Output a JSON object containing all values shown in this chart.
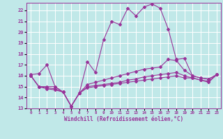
{
  "xlabel": "Windchill (Refroidissement éolien,°C)",
  "bg_color": "#c0e8e8",
  "grid_color": "#ffffff",
  "line_color": "#993399",
  "xlim": [
    -0.5,
    23.5
  ],
  "ylim": [
    13,
    22.7
  ],
  "yticks": [
    13,
    14,
    15,
    16,
    17,
    18,
    19,
    20,
    21,
    22
  ],
  "xticks": [
    0,
    1,
    2,
    3,
    4,
    5,
    6,
    7,
    8,
    9,
    10,
    11,
    12,
    13,
    14,
    15,
    16,
    17,
    18,
    19,
    20,
    21,
    22,
    23
  ],
  "line1_x": [
    0,
    1,
    2,
    3,
    4,
    5,
    6,
    7,
    8,
    9,
    10,
    11,
    12,
    13,
    14,
    15,
    16,
    17,
    18,
    19,
    20,
    21,
    22,
    23
  ],
  "line1_y": [
    16.1,
    16.2,
    17.0,
    15.0,
    14.5,
    13.2,
    14.4,
    17.3,
    16.3,
    19.3,
    21.0,
    20.7,
    22.2,
    21.5,
    22.3,
    22.6,
    22.2,
    20.3,
    17.5,
    17.6,
    16.0,
    15.8,
    15.7,
    16.1
  ],
  "line2_x": [
    0,
    1,
    2,
    3,
    4,
    5,
    6,
    7,
    8,
    9,
    10,
    11,
    12,
    13,
    14,
    15,
    16,
    17,
    18,
    19,
    20,
    21,
    22,
    23
  ],
  "line2_y": [
    16.0,
    15.0,
    15.0,
    15.0,
    14.5,
    13.2,
    14.4,
    15.2,
    15.4,
    15.6,
    15.8,
    16.0,
    16.2,
    16.4,
    16.6,
    16.7,
    16.8,
    17.5,
    17.4,
    16.5,
    16.0,
    15.8,
    15.7,
    16.1
  ],
  "line3_x": [
    0,
    1,
    2,
    3,
    4,
    5,
    6,
    7,
    8,
    9,
    10,
    11,
    12,
    13,
    14,
    15,
    16,
    17,
    18,
    19,
    20,
    21,
    22,
    23
  ],
  "line3_y": [
    16.0,
    15.0,
    14.9,
    14.8,
    14.5,
    13.2,
    14.4,
    15.0,
    15.1,
    15.2,
    15.3,
    15.4,
    15.6,
    15.7,
    15.9,
    16.0,
    16.1,
    16.2,
    16.3,
    16.0,
    15.8,
    15.6,
    15.5,
    16.1
  ],
  "line4_x": [
    0,
    1,
    2,
    3,
    4,
    5,
    6,
    7,
    8,
    9,
    10,
    11,
    12,
    13,
    14,
    15,
    16,
    17,
    18,
    19,
    20,
    21,
    22,
    23
  ],
  "line4_y": [
    16.0,
    15.0,
    14.8,
    14.7,
    14.5,
    13.2,
    14.4,
    14.9,
    15.0,
    15.1,
    15.2,
    15.3,
    15.4,
    15.5,
    15.6,
    15.7,
    15.8,
    15.9,
    16.0,
    15.8,
    15.8,
    15.6,
    15.4,
    16.1
  ]
}
